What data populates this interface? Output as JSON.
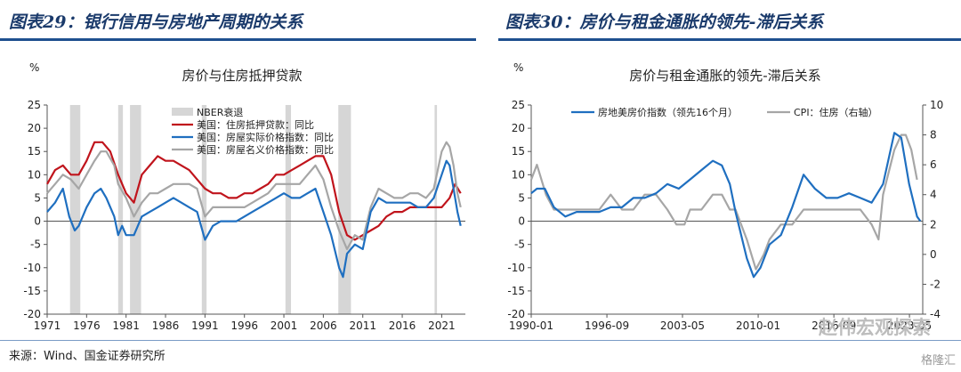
{
  "header": {
    "left_title": "图表29：银行信用与房地产周期的关系",
    "right_title": "图表30：房价与租金通胀的领先-滞后关系"
  },
  "footer": {
    "source": "来源：Wind、国金证券研究所",
    "watermark": "赵伟宏观探索",
    "watermark2": "格隆汇"
  },
  "chart_data": [
    {
      "type": "line",
      "title": "房价与住房抵押贷款",
      "y_unit": "%",
      "ylim": [
        -20,
        25
      ],
      "yticks": [
        -20,
        -15,
        -10,
        -5,
        0,
        5,
        10,
        15,
        20,
        25
      ],
      "xlim": [
        1971,
        2024
      ],
      "xticks": [
        1971,
        1976,
        1981,
        1986,
        1991,
        1996,
        2001,
        2006,
        2011,
        2016,
        2021
      ],
      "grid": false,
      "legend_position": "top-center",
      "recession_label": "NBER衰退",
      "recessions": [
        [
          1973.9,
          1975.2
        ],
        [
          1980.0,
          1980.6
        ],
        [
          1981.5,
          1982.9
        ],
        [
          1990.6,
          1991.2
        ],
        [
          2001.2,
          2001.9
        ],
        [
          2007.9,
          2009.5
        ],
        [
          2020.1,
          2020.4
        ]
      ],
      "series": [
        {
          "name": "美国：房屋实际价格指数：同比",
          "color": "#1f6fc0",
          "x": [
            1971,
            1972,
            1973,
            1973.8,
            1974.5,
            1975,
            1976,
            1977,
            1977.8,
            1978.5,
            1979.5,
            1980,
            1980.5,
            1981,
            1982,
            1983,
            1984,
            1985,
            1986,
            1987,
            1988,
            1989,
            1990,
            1991,
            1992,
            1993,
            1994,
            1995,
            1996,
            1997,
            1998,
            1999,
            2000,
            2001,
            2002,
            2003,
            2004,
            2005,
            2006,
            2007,
            2008,
            2008.5,
            2009,
            2010,
            2011,
            2012,
            2013,
            2014,
            2015,
            2016,
            2017,
            2018,
            2019,
            2020,
            2021,
            2021.6,
            2022,
            2022.5,
            2023,
            2023.4
          ],
          "values": [
            2,
            4,
            7,
            1,
            -2,
            -1,
            3,
            6,
            7,
            5,
            1,
            -3,
            -1,
            -3,
            -3,
            1,
            2,
            3,
            4,
            5,
            4,
            3,
            2,
            -4,
            -1,
            0,
            0,
            0,
            1,
            2,
            3,
            4,
            5,
            6,
            5,
            5,
            6,
            7,
            2,
            -3,
            -10,
            -12,
            -7,
            -5,
            -6,
            2,
            5,
            4,
            4,
            4,
            4,
            3,
            3,
            5,
            10,
            13,
            12,
            7,
            2,
            -1
          ]
        },
        {
          "name": "美国：房屋名义价格指数：同比",
          "color": "#a6a6a6",
          "x": [
            1971,
            1972,
            1973,
            1974,
            1975,
            1976,
            1977,
            1977.8,
            1978.5,
            1979.5,
            1980,
            1981,
            1982,
            1983,
            1984,
            1985,
            1986,
            1987,
            1988,
            1989,
            1990,
            1991,
            1992,
            1993,
            1994,
            1995,
            1996,
            1997,
            1998,
            1999,
            2000,
            2001,
            2002,
            2003,
            2004,
            2005,
            2006,
            2007,
            2008,
            2009,
            2010,
            2011,
            2012,
            2013,
            2014,
            2015,
            2016,
            2017,
            2018,
            2019,
            2020,
            2021,
            2021.6,
            2022,
            2022.5,
            2023,
            2023.4
          ],
          "values": [
            6,
            8,
            10,
            9,
            7,
            10,
            13,
            15,
            15,
            12,
            8,
            5,
            1,
            4,
            6,
            6,
            7,
            8,
            8,
            8,
            7,
            1,
            3,
            3,
            3,
            3,
            3,
            4,
            5,
            6,
            8,
            8,
            8,
            8,
            10,
            12,
            9,
            3,
            -2,
            -6,
            -3,
            -4,
            3,
            7,
            6,
            5,
            5,
            6,
            6,
            5,
            7,
            15,
            17,
            16,
            12,
            6,
            3
          ]
        },
        {
          "name": "美国：住房抵押贷款：同比",
          "color": "#c0141c",
          "x": [
            1971,
            1972,
            1973,
            1974,
            1975,
            1976,
            1977,
            1978,
            1979,
            1980,
            1981,
            1982,
            1983,
            1984,
            1985,
            1986,
            1987,
            1988,
            1989,
            1990,
            1991,
            1992,
            1993,
            1994,
            1995,
            1996,
            1997,
            1998,
            1999,
            2000,
            2001,
            2002,
            2003,
            2004,
            2005,
            2006,
            2007,
            2008,
            2009,
            2010,
            2011,
            2012,
            2013,
            2014,
            2015,
            2016,
            2017,
            2018,
            2019,
            2020,
            2021,
            2022,
            2022.7,
            2023.4
          ],
          "values": [
            8,
            11,
            12,
            10,
            10,
            13,
            17,
            17,
            15,
            10,
            6,
            4,
            10,
            12,
            14,
            13,
            13,
            12,
            11,
            9,
            7,
            6,
            6,
            5,
            5,
            6,
            6,
            7,
            8,
            10,
            10,
            11,
            12,
            13,
            14,
            14,
            10,
            2,
            -3,
            -4,
            -3,
            -2,
            -1,
            1,
            2,
            2,
            3,
            3,
            3,
            3,
            3,
            5,
            8,
            6
          ]
        }
      ]
    },
    {
      "type": "line",
      "title": "房价与租金通胀的领先-滞后关系",
      "y_unit": "%",
      "ylim": [
        -20,
        25
      ],
      "yticks": [
        -20,
        -15,
        -10,
        -5,
        0,
        5,
        10,
        15,
        20,
        25
      ],
      "y2lim": [
        -4,
        10
      ],
      "y2ticks": [
        -4,
        -2,
        0,
        2,
        4,
        6,
        8,
        10
      ],
      "xlim": [
        1990.0,
        2024.5
      ],
      "xticks": [
        "1990-01",
        "1996-09",
        "2003-05",
        "2010-01",
        "2016-09",
        "2023-05"
      ],
      "xtick_values": [
        1990.0,
        1996.67,
        2003.33,
        2010.0,
        2016.67,
        2023.33
      ],
      "grid": false,
      "legend_position": "top",
      "series": [
        {
          "name": "房地美房价指数（领先16个月）",
          "color": "#1f6fc0",
          "axis": "left",
          "x": [
            1990,
            1990.5,
            1991.2,
            1992,
            1993,
            1994,
            1995,
            1996,
            1997,
            1998,
            1999,
            2000,
            2001,
            2002,
            2003,
            2004,
            2005,
            2006,
            2006.8,
            2007.5,
            2008,
            2009,
            2009.6,
            2010.2,
            2011,
            2012,
            2013,
            2014,
            2015,
            2016,
            2017,
            2018,
            2019,
            2020,
            2021,
            2022,
            2022.6,
            2023.3,
            2024,
            2024.3
          ],
          "values": [
            6,
            7,
            7,
            3,
            1,
            2,
            2,
            2,
            3,
            3,
            5,
            5,
            6,
            8,
            7,
            9,
            11,
            13,
            12,
            8,
            2,
            -8,
            -12,
            -10,
            -5,
            -3,
            3,
            10,
            7,
            5,
            5,
            6,
            5,
            4,
            8,
            19,
            18,
            8,
            1,
            0
          ]
        },
        {
          "name": "CPI：住房（右轴）",
          "color": "#a6a6a6",
          "axis": "right",
          "x": [
            1990,
            1990.5,
            1991.3,
            1992,
            1993,
            1994,
            1995,
            1996,
            1997,
            1998,
            1999,
            2000,
            2001,
            2002,
            2002.8,
            2003.5,
            2004,
            2005,
            2006,
            2006.8,
            2007.5,
            2008,
            2009,
            2009.8,
            2010.5,
            2011,
            2012,
            2013,
            2014,
            2015,
            2016,
            2017,
            2018,
            2019,
            2020,
            2020.6,
            2021,
            2022,
            2022.6,
            2023,
            2023.5,
            2024
          ],
          "values": [
            5,
            6,
            4,
            3,
            3,
            3,
            3,
            3,
            4,
            3,
            3,
            4,
            4,
            3,
            2,
            2,
            3,
            3,
            4,
            4,
            3,
            3,
            1,
            -1,
            0,
            1,
            2,
            2,
            3,
            3,
            3,
            3,
            3,
            3,
            2,
            1,
            4,
            7,
            8,
            8,
            7,
            5
          ]
        }
      ]
    }
  ]
}
